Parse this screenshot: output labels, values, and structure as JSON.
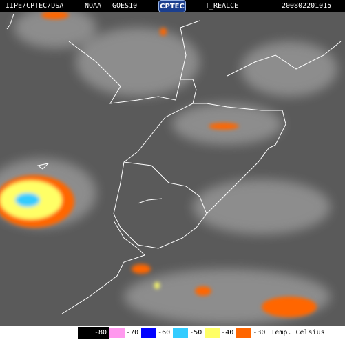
{
  "header": {
    "source": "IIPE/CPTEC/DSA",
    "agency": "NOAA",
    "satellite": "GOES10",
    "logo": "CPTEC",
    "product": "T_REALCE",
    "timestamp": "200802201015"
  },
  "legend": {
    "items": [
      {
        "label": "-80",
        "color": "#000000"
      },
      {
        "label": "-70",
        "color": "#ff99ee"
      },
      {
        "label": "-60",
        "color": "#0000ff"
      },
      {
        "label": "-50",
        "color": "#33ccff"
      },
      {
        "label": "-40",
        "color": "#ffff66"
      },
      {
        "label": "-30",
        "color": "#ff6600"
      }
    ],
    "unit": "Temp. Celsius"
  }
}
